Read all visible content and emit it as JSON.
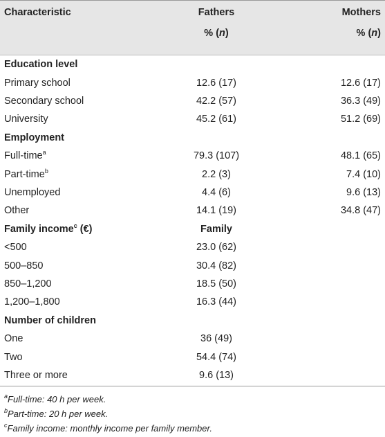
{
  "table": {
    "header": {
      "characteristic": "Characteristic",
      "fathers": "Fathers",
      "mothers": "Mothers",
      "unit": {
        "prefix": "% (",
        "variable": "n",
        "suffix": ")"
      }
    },
    "sections": [
      {
        "title": "Education level",
        "rows": [
          {
            "label": "Primary school",
            "fathers": "12.6 (17)",
            "mothers": "12.6 (17)"
          },
          {
            "label": "Secondary school",
            "fathers": "42.2 (57)",
            "mothers": "36.3 (49)"
          },
          {
            "label": "University",
            "fathers": "45.2 (61)",
            "mothers": "51.2 (69)"
          }
        ]
      },
      {
        "title": "Employment",
        "rows": [
          {
            "label": "Full-time",
            "sup": "a",
            "fathers": "79.3 (107)",
            "mothers": "48.1 (65)"
          },
          {
            "label": "Part-time",
            "sup": "b",
            "fathers": "2.2 (3)",
            "mothers": "7.4 (10)"
          },
          {
            "label": "Unemployed",
            "fathers": "4.4 (6)",
            "mothers": "9.6 (13)"
          },
          {
            "label": "Other",
            "fathers": "14.1 (19)",
            "mothers": "34.8 (47)"
          }
        ]
      },
      {
        "title": "Family income",
        "title_sup": "c",
        "title_suffix": " (€)",
        "column_label": "Family",
        "rows": [
          {
            "label": "<500",
            "fathers": "23.0 (62)"
          },
          {
            "label": "500–850",
            "fathers": "30.4 (82)"
          },
          {
            "label": "850–1,200",
            "fathers": "18.5 (50)"
          },
          {
            "label": "1,200–1,800",
            "fathers": "16.3 (44)"
          }
        ]
      },
      {
        "title": "Number of children",
        "rows": [
          {
            "label": "One",
            "fathers": "36 (49)"
          },
          {
            "label": "Two",
            "fathers": "54.4 (74)"
          },
          {
            "label": "Three or more",
            "fathers": "9.6 (13)"
          }
        ]
      }
    ]
  },
  "footnotes": [
    {
      "mark": "a",
      "text": "Full-time: 40 h per week."
    },
    {
      "mark": "b",
      "text": "Part-time: 20 h per week."
    },
    {
      "mark": "c",
      "text": "Family income: monthly income per family member."
    }
  ]
}
